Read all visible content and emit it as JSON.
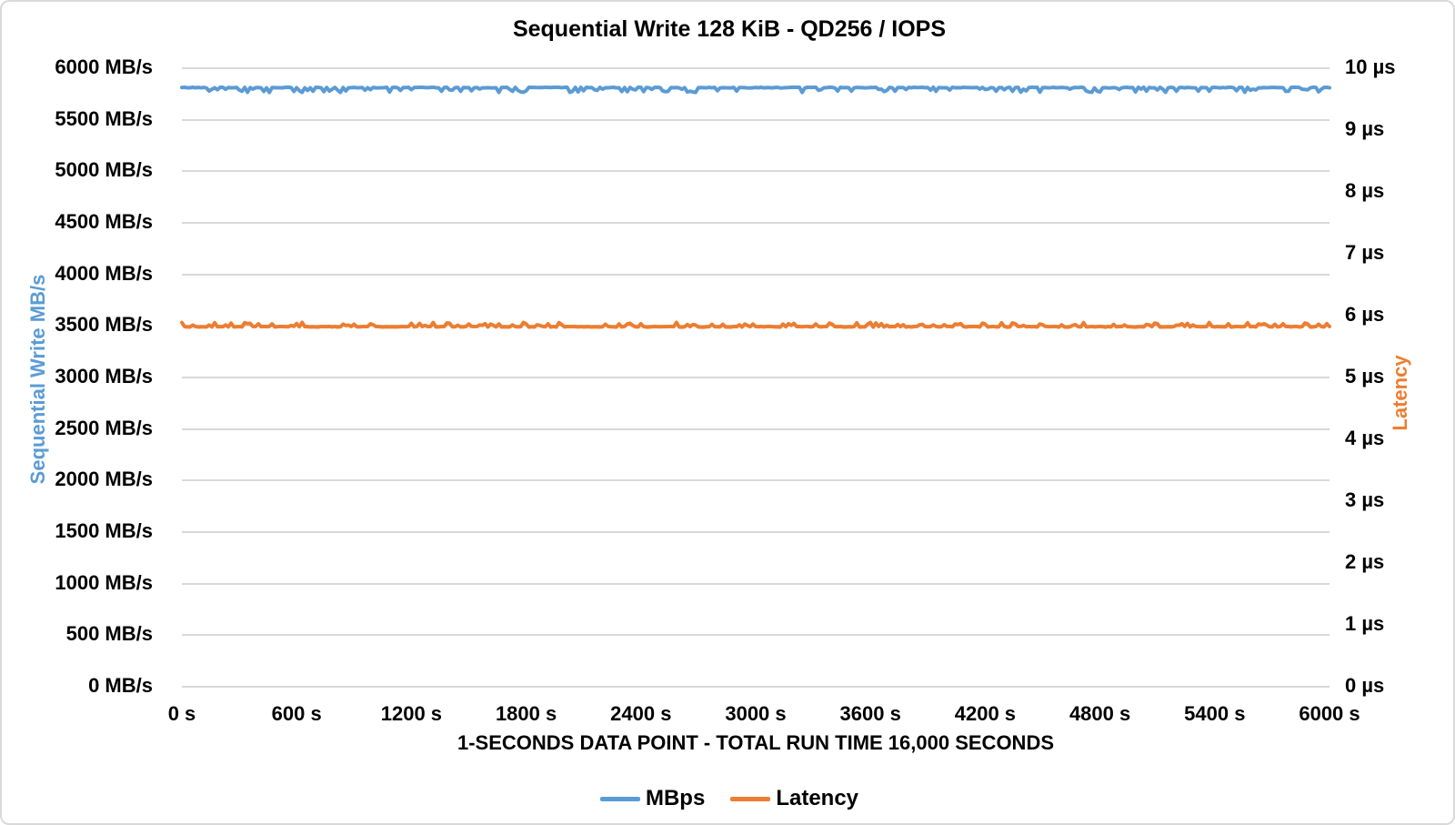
{
  "chart_data": {
    "type": "line",
    "title": "Sequential Write 128 KiB - QD256 / IOPS",
    "x_axis": {
      "title": "1-SECONDS DATA POINT - TOTAL RUN TIME 16,000 SECONDS",
      "min": 0,
      "max": 6000,
      "tick_interval": 600,
      "tick_labels": [
        "0 s",
        "600 s",
        "1200 s",
        "1800 s",
        "2400 s",
        "3000 s",
        "3600 s",
        "4200 s",
        "4800 s",
        "5400 s",
        "6000 s"
      ]
    },
    "left_axis": {
      "title": "Sequential Write MB/s",
      "unit": "MB/s",
      "min": 0,
      "max": 6000,
      "tick_interval": 500,
      "color": "#5B9BD5",
      "tick_labels": [
        "0 MB/s",
        "500 MB/s",
        "1000 MB/s",
        "1500 MB/s",
        "2000 MB/s",
        "2500 MB/s",
        "3000 MB/s",
        "3500 MB/s",
        "4000 MB/s",
        "4500 MB/s",
        "5000 MB/s",
        "5500 MB/s",
        "6000 MB/s"
      ]
    },
    "right_axis": {
      "title": "Latency",
      "unit": "µs",
      "min": 0,
      "max": 10,
      "tick_interval": 1,
      "color": "#ED7D31",
      "tick_labels": [
        "0 µs",
        "1 µs",
        "2 µs",
        "3 µs",
        "4 µs",
        "5 µs",
        "6 µs",
        "7 µs",
        "8 µs",
        "9 µs",
        "10 µs"
      ]
    },
    "grid": {
      "horizontal": true,
      "vertical": false,
      "color": "#D9D9D9"
    },
    "legend": {
      "position": "bottom",
      "items": [
        "MBps",
        "Latency"
      ]
    },
    "series": [
      {
        "name": "MBps",
        "axis": "left",
        "color": "#5B9BD5",
        "shape": "flat-with-small-downward-dips",
        "mean": 5812,
        "dip_min": 5765,
        "sampled_x_s": [
          0,
          600,
          1200,
          1800,
          2400,
          3000,
          3600,
          4200,
          4800,
          5400,
          6000
        ],
        "sampled_values_mbps": [
          5810,
          5813,
          5809,
          5812,
          5811,
          5814,
          5810,
          5812,
          5809,
          5813,
          5811
        ]
      },
      {
        "name": "Latency",
        "axis": "right",
        "color": "#ED7D31",
        "shape": "flat-with-small-upward-spikes",
        "mean_us": 5.82,
        "spike_max_us": 5.89,
        "sampled_x_s": [
          0,
          600,
          1200,
          1800,
          2400,
          3000,
          3600,
          4200,
          4800,
          5400,
          6000
        ],
        "sampled_values_us": [
          5.82,
          5.81,
          5.83,
          5.82,
          5.82,
          5.81,
          5.83,
          5.82,
          5.81,
          5.82,
          5.82
        ]
      }
    ]
  }
}
